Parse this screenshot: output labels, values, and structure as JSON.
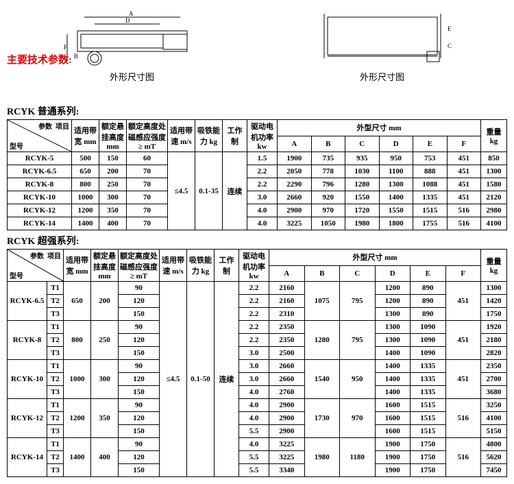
{
  "captions": {
    "left": "外形尺寸图",
    "right": "外形尺寸图"
  },
  "section_title": "主要技术参数:",
  "series1": {
    "title": "RCYK 普通系列:",
    "headers": {
      "param": "参数",
      "item": "项目",
      "model": "型号",
      "belt_width": "适用带宽 mm",
      "hang_height": "额定悬挂高度 mm",
      "mag_intensity": "额定高度处磁感应强度≥ mT",
      "belt_speed": "适用带速 m/s",
      "iron_capacity": "吸铁能力 kg",
      "work_mode": "工作制",
      "motor_power": "驱动电机功率 kw",
      "dims": "外型尺寸  mm",
      "A": "A",
      "B": "B",
      "C": "C",
      "D": "D",
      "E": "E",
      "F": "F",
      "weight": "重量 kg"
    },
    "shared": {
      "belt_speed": "≤4.5",
      "iron_capacity": "0.1-35",
      "work_mode": "连续"
    },
    "rows": [
      {
        "model": "RCYK-5",
        "bw": "500",
        "hh": "150",
        "mi": "60",
        "mp": "1.5",
        "A": "1900",
        "B": "735",
        "C": "935",
        "D": "950",
        "E": "753",
        "F": "451",
        "wt": "850"
      },
      {
        "model": "RCYK-6.5",
        "bw": "650",
        "hh": "200",
        "mi": "70",
        "mp": "2.2",
        "A": "2050",
        "B": "778",
        "C": "1030",
        "D": "1100",
        "E": "888",
        "F": "451",
        "wt": "1300"
      },
      {
        "model": "RCYK-8",
        "bw": "800",
        "hh": "250",
        "mi": "70",
        "mp": "2.2",
        "A": "2290",
        "B": "796",
        "C": "1280",
        "D": "1300",
        "E": "1088",
        "F": "451",
        "wt": "1580"
      },
      {
        "model": "RCYK-10",
        "bw": "1000",
        "hh": "300",
        "mi": "70",
        "mp": "3.0",
        "A": "2660",
        "B": "920",
        "C": "1550",
        "D": "1400",
        "E": "1335",
        "F": "451",
        "wt": "2120"
      },
      {
        "model": "RCYK-12",
        "bw": "1200",
        "hh": "350",
        "mi": "70",
        "mp": "4.0",
        "A": "2900",
        "B": "970",
        "C": "1720",
        "D": "1550",
        "E": "1515",
        "F": "516",
        "wt": "2980"
      },
      {
        "model": "RCYK-14",
        "bw": "1400",
        "hh": "400",
        "mi": "70",
        "mp": "4.0",
        "A": "3225",
        "B": "1050",
        "C": "1980",
        "D": "1800",
        "E": "1755",
        "F": "516",
        "wt": "4100"
      }
    ]
  },
  "series2": {
    "title": "RCYK 超强系列:",
    "headers": {
      "param": "参数",
      "item": "项目",
      "model": "型号",
      "belt_width": "适用带宽 mm",
      "hang_height": "额定悬挂高度 mm",
      "mag_intensity": "额定高度处磁感应强度≥ mT",
      "belt_speed": "适用带速 m/s",
      "iron_capacity": "吸铁能力 kg",
      "work_mode": "工作制",
      "motor_power": "驱动电机功率 kw",
      "dims": "外型尺寸  mm",
      "A": "A",
      "B": "B",
      "C": "C",
      "D": "D",
      "E": "E",
      "F": "F",
      "weight": "重量 kg"
    },
    "shared": {
      "belt_speed": "≤4.5",
      "iron_capacity": "0.1-50",
      "work_mode": "连续"
    },
    "groups": [
      {
        "model": "RCYK-6.5",
        "bw": "650",
        "hh": "200",
        "B": "1075",
        "C": "795",
        "F": "451",
        "subs": [
          {
            "t": "T1",
            "mi": "90",
            "mp": "2.2",
            "A": "2160",
            "D": "1200",
            "E": "890",
            "wt": "1300"
          },
          {
            "t": "T2",
            "mi": "120",
            "mp": "2.2",
            "A": "2160",
            "D": "1200",
            "E": "890",
            "wt": "1420"
          },
          {
            "t": "T3",
            "mi": "150",
            "mp": "2.2",
            "A": "2310",
            "D": "1300",
            "E": "890",
            "wt": "1750"
          }
        ]
      },
      {
        "model": "RCYK-8",
        "bw": "800",
        "hh": "250",
        "B": "1280",
        "C": "795",
        "F": "451",
        "subs": [
          {
            "t": "T1",
            "mi": "90",
            "mp": "2.2",
            "A": "2350",
            "D": "1300",
            "E": "1090",
            "wt": "1920"
          },
          {
            "t": "T2",
            "mi": "120",
            "mp": "2.2",
            "A": "2350",
            "D": "1300",
            "E": "1090",
            "wt": "2180"
          },
          {
            "t": "T3",
            "mi": "150",
            "mp": "3.0",
            "A": "2500",
            "D": "1400",
            "E": "1090",
            "wt": "2820"
          }
        ]
      },
      {
        "model": "RCYK-10",
        "bw": "1000",
        "hh": "300",
        "B": "1540",
        "C": "950",
        "F": "451",
        "subs": [
          {
            "t": "T1",
            "mi": "90",
            "mp": "3.0",
            "A": "2660",
            "D": "1400",
            "E": "1335",
            "wt": "2350"
          },
          {
            "t": "T2",
            "mi": "120",
            "mp": "3.0",
            "A": "2660",
            "D": "1400",
            "E": "1335",
            "wt": "2700"
          },
          {
            "t": "T3",
            "mi": "150",
            "mp": "4.0",
            "A": "2760",
            "D": "1400",
            "E": "1335",
            "wt": "3680"
          }
        ]
      },
      {
        "model": "RCYK-12",
        "bw": "1200",
        "hh": "350",
        "B": "1730",
        "C": "970",
        "F": "516",
        "subs": [
          {
            "t": "T1",
            "mi": "90",
            "mp": "4.0",
            "A": "2900",
            "D": "1600",
            "E": "1515",
            "wt": "3250"
          },
          {
            "t": "T2",
            "mi": "120",
            "mp": "4.0",
            "A": "2900",
            "D": "1600",
            "E": "1515",
            "wt": "4100"
          },
          {
            "t": "T3",
            "mi": "150",
            "mp": "5.5",
            "A": "2900",
            "D": "1600",
            "E": "1515",
            "wt": "5150"
          }
        ]
      },
      {
        "model": "RCYK-14",
        "bw": "1400",
        "hh": "400",
        "B": "1980",
        "C": "1180",
        "F": "516",
        "subs": [
          {
            "t": "T1",
            "mi": "90",
            "mp": "4.0",
            "A": "3225",
            "D": "1900",
            "E": "1750",
            "wt": "4800"
          },
          {
            "t": "T2",
            "mi": "120",
            "mp": "5.5",
            "A": "3225",
            "D": "1900",
            "E": "1750",
            "wt": "5620"
          },
          {
            "t": "T3",
            "mi": "150",
            "mp": "5.5",
            "A": "3340",
            "D": "1900",
            "E": "1750",
            "wt": "7450"
          }
        ]
      }
    ]
  }
}
